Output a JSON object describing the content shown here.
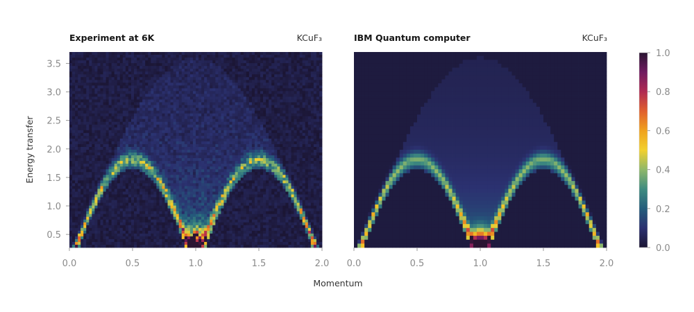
{
  "chart_data": [
    {
      "type": "heatmap",
      "title": "Experiment at 6K",
      "subtitle": "KCuF₃",
      "xlim": [
        0.0,
        2.0
      ],
      "ylim": [
        0.27,
        3.7
      ],
      "xticks": [
        "0.0",
        "0.5",
        "1.0",
        "1.5",
        "2.0"
      ],
      "yticks": [
        "0.5",
        "1.0",
        "1.5",
        "2.0",
        "2.5",
        "3.0",
        "3.5"
      ],
      "noisy": true
    },
    {
      "type": "heatmap",
      "title": "IBM Quantum computer",
      "subtitle": "KCuF₃",
      "xlim": [
        0.0,
        2.0
      ],
      "ylim": [
        0.27,
        3.7
      ],
      "xticks": [
        "0.0",
        "0.5",
        "1.0",
        "1.5",
        "2.0"
      ],
      "noisy": false
    }
  ],
  "shared": {
    "xlabel": "Momentum",
    "ylabel": "Energy transfer"
  },
  "colorbar": {
    "range": [
      0.0,
      1.0
    ],
    "ticks": [
      "0.0",
      "0.2",
      "0.4",
      "0.6",
      "0.8",
      "1.0"
    ],
    "colors": [
      "#1b1533",
      "#2b3170",
      "#245d7c",
      "#3f8c80",
      "#8fb86a",
      "#f2d02e",
      "#f0a21e",
      "#e0602e",
      "#b02a52",
      "#701b60",
      "#2a1432"
    ]
  }
}
